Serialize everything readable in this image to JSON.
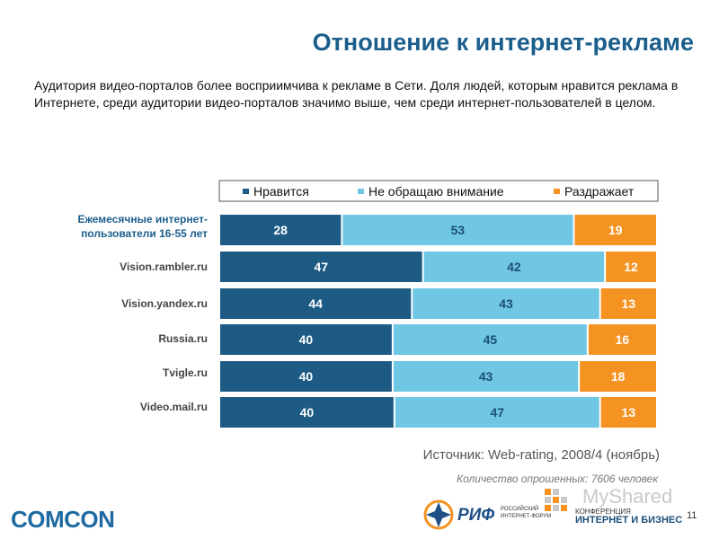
{
  "title": "Отношение к интернет-рекламе",
  "intro": "Аудитория видео-порталов более восприимчива к рекламе в Сети. Доля людей, которым нравится реклама в Интернете, среди аудитории видео-порталов значимо выше, чем среди интернет-пользователей в целом.",
  "chart_data": {
    "type": "bar",
    "orientation": "horizontal",
    "stacked": true,
    "categories": [
      "Ежемесячные интернет-пользователи 16-55 лет",
      "Vision.rambler.ru",
      "Vision.yandex.ru",
      "Russia.ru",
      "Tvigle.ru",
      "Video.mail.ru"
    ],
    "series": [
      {
        "name": "Нравится",
        "color": "#1d5a84",
        "values": [
          28,
          47,
          44,
          40,
          40,
          40
        ]
      },
      {
        "name": "Не обращаю внимание",
        "color": "#6fc7e3",
        "values": [
          53,
          42,
          43,
          45,
          43,
          47
        ]
      },
      {
        "name": "Раздражает",
        "color": "#f59322",
        "values": [
          19,
          12,
          13,
          16,
          18,
          13
        ]
      }
    ],
    "xlim": [
      0,
      100
    ],
    "legend": "top",
    "grid": false
  },
  "source": "Источник: Web-rating, 2008/4 (ноябрь)",
  "sample": "Количество опрошенных: 7606 человек",
  "footer": {
    "comcon": "COMCON",
    "rif": "РИФ",
    "rif_sub1": "РОССИЙСКИЙ",
    "rif_sub2": "ИНТЕРНЕТ-ФОРУМ",
    "conf1": "КОНФЕРЕНЦИЯ",
    "conf2": "ИНТЕРНЕТ И БИЗНЕС",
    "watermark": "MyShared",
    "page": "11"
  }
}
